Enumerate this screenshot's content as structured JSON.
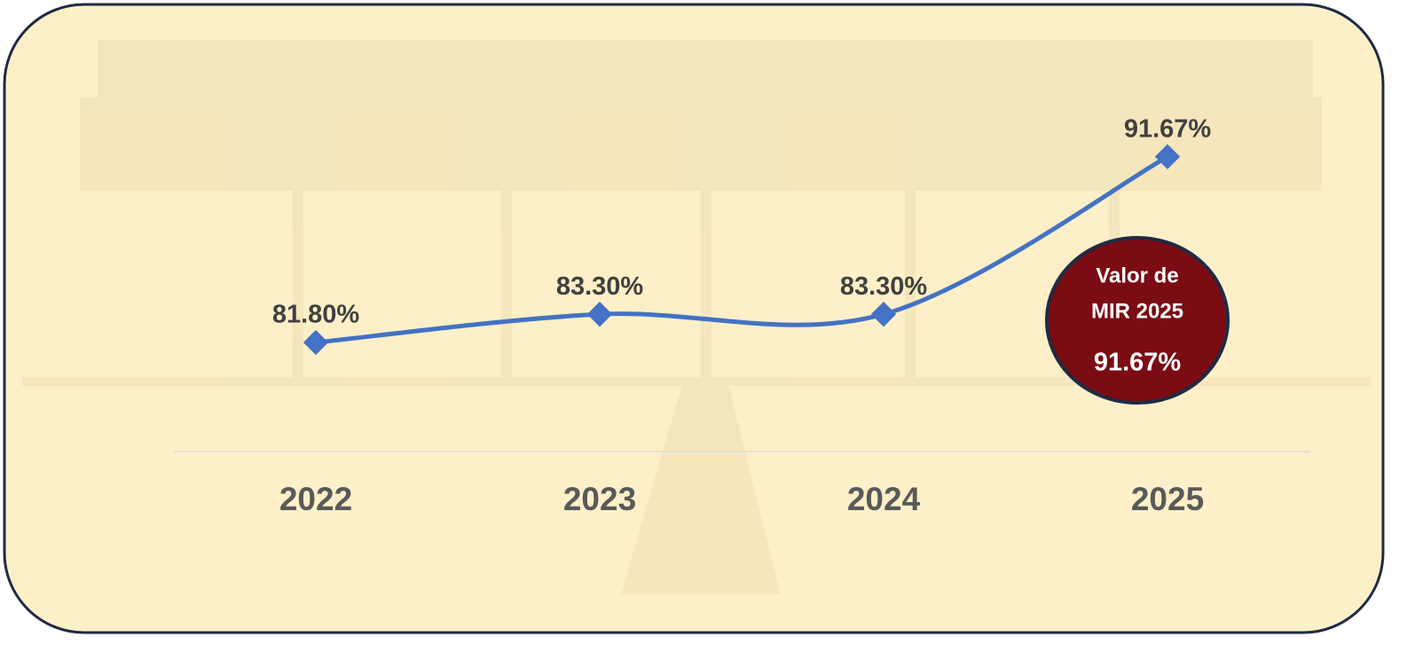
{
  "chart_data": {
    "type": "line",
    "categories": [
      "2022",
      "2023",
      "2024",
      "2025"
    ],
    "values": [
      81.8,
      83.3,
      83.3,
      91.67
    ],
    "value_labels": [
      "81.80%",
      "83.30%",
      "83.30%",
      "91.67%"
    ],
    "color": "#4472c4",
    "ylim": [
      76,
      100
    ],
    "annotation": {
      "lines": [
        "Valor de",
        "MIR 2025"
      ],
      "value": 91.67,
      "value_label": "91.67%",
      "color": "#7b0c14"
    }
  }
}
